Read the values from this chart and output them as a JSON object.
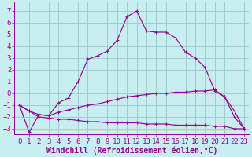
{
  "xlabel": "Windchill (Refroidissement éolien,°C)",
  "background_color": "#c8eef0",
  "grid_color": "#9dcfcf",
  "line_color": "#990099",
  "label_color": "#990099",
  "xlim": [
    -0.5,
    23.5
  ],
  "ylim": [
    -3.5,
    7.7
  ],
  "yticks": [
    -3,
    -2,
    -1,
    0,
    1,
    2,
    3,
    4,
    5,
    6,
    7
  ],
  "xticks": [
    0,
    1,
    2,
    3,
    4,
    5,
    6,
    7,
    8,
    9,
    10,
    11,
    12,
    13,
    14,
    15,
    16,
    17,
    18,
    19,
    20,
    21,
    22,
    23
  ],
  "line1_x": [
    0,
    1,
    2,
    3,
    4,
    5,
    6,
    7,
    8,
    9,
    10,
    11,
    12,
    13,
    14,
    15,
    16,
    17,
    18,
    19,
    20,
    21,
    22,
    23
  ],
  "line1_y": [
    -1.0,
    -3.3,
    -1.8,
    -1.9,
    -0.8,
    -0.4,
    1.0,
    2.9,
    3.2,
    3.6,
    4.5,
    6.5,
    7.0,
    5.3,
    5.2,
    5.2,
    4.7,
    3.5,
    3.0,
    2.2,
    0.2,
    -0.3,
    -2.0,
    -3.0
  ],
  "line2_x": [
    0,
    1,
    2,
    3,
    4,
    5,
    6,
    7,
    8,
    9,
    10,
    11,
    12,
    13,
    14,
    15,
    16,
    17,
    18,
    19,
    20,
    21,
    22,
    23
  ],
  "line2_y": [
    -1.0,
    -1.5,
    -1.8,
    -1.9,
    -1.6,
    -1.4,
    -1.2,
    -1.0,
    -0.9,
    -0.7,
    -0.5,
    -0.3,
    -0.2,
    -0.1,
    0.0,
    0.0,
    0.1,
    0.1,
    0.2,
    0.2,
    0.3,
    -0.3,
    -1.5,
    -3.0
  ],
  "line3_x": [
    0,
    1,
    2,
    3,
    4,
    5,
    6,
    7,
    8,
    9,
    10,
    11,
    12,
    13,
    14,
    15,
    16,
    17,
    18,
    19,
    20,
    21,
    22,
    23
  ],
  "line3_y": [
    -1.0,
    -1.5,
    -2.0,
    -2.1,
    -2.2,
    -2.2,
    -2.3,
    -2.4,
    -2.4,
    -2.5,
    -2.5,
    -2.5,
    -2.5,
    -2.6,
    -2.6,
    -2.6,
    -2.7,
    -2.7,
    -2.7,
    -2.7,
    -2.8,
    -2.8,
    -3.0,
    -3.0
  ],
  "tick_fontsize": 6.5,
  "xlabel_fontsize": 7.0
}
